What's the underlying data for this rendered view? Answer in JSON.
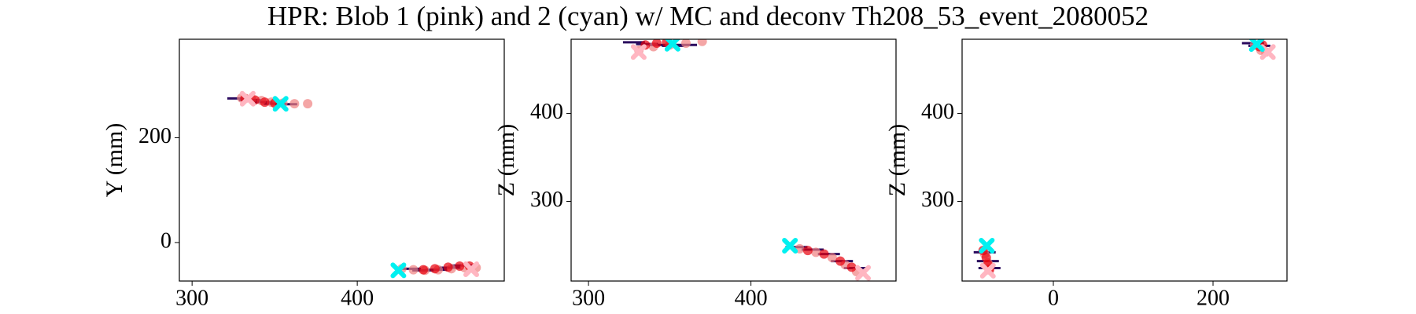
{
  "title": "HPR: Blob 1 (pink) and 2 (cyan) w/ MC and deconv Th208_53_event_2080052",
  "chart_data": [
    {
      "type": "scatter",
      "ylabel": "Y (mm)",
      "xlim": [
        292.3,
        489
      ],
      "ylim": [
        -73.5,
        388
      ],
      "xticks": [
        300,
        400
      ],
      "yticks": [
        0,
        200
      ],
      "series": [
        {
          "color": "#2a0a5e",
          "marker": "hline",
          "x": [
            328,
            335,
            342,
            350,
            357,
            432,
            440,
            448,
            456,
            463
          ],
          "values": [
            275,
            272,
            268,
            265,
            264,
            -50,
            -53,
            -52,
            -48,
            -44
          ]
        },
        {
          "color": "#f08080",
          "marker": "circle",
          "x": [
            330,
            336,
            342,
            348,
            355,
            362,
            370,
            427,
            434,
            441,
            449,
            457,
            465,
            472
          ],
          "values": [
            276,
            274,
            271,
            268,
            266,
            265,
            265,
            -50,
            -52,
            -53,
            -52,
            -50,
            -48,
            -48
          ]
        },
        {
          "color": "#e8000b",
          "marker": "circle",
          "x": [
            332,
            338,
            344,
            350,
            440,
            447,
            455,
            462,
            468
          ],
          "values": [
            275,
            272,
            268,
            266,
            -52,
            -50,
            -47,
            -45,
            -45
          ]
        },
        {
          "color": "#ffb6c1",
          "marker": "x",
          "x": [
            333.7,
            469
          ],
          "values": [
            274.5,
            -51
          ]
        },
        {
          "color": "#00f0f0",
          "marker": "x",
          "x": [
            353.6,
            424.9
          ],
          "values": [
            264.7,
            -53
          ]
        }
      ]
    },
    {
      "type": "scatter",
      "ylabel": "Z (mm)",
      "xlim": [
        289.3,
        489.3
      ],
      "ylim": [
        209.3,
        484.5
      ],
      "xticks": [
        300,
        400
      ],
      "yticks": [
        300,
        400
      ],
      "series": [
        {
          "color": "#2a0a5e",
          "marker": "hline",
          "x": [
            328,
            336,
            344,
            352,
            360,
            428,
            438,
            448,
            456,
            464
          ],
          "values": [
            481,
            479,
            478,
            477,
            478,
            248,
            245,
            240,
            232,
            224
          ]
        },
        {
          "color": "#f08080",
          "marker": "circle",
          "x": [
            331,
            340,
            350,
            360,
            370,
            430,
            440,
            450,
            458,
            465
          ],
          "values": [
            472,
            476,
            478,
            480,
            482,
            246,
            242,
            236,
            228,
            220
          ]
        },
        {
          "color": "#e8000b",
          "marker": "circle",
          "x": [
            335,
            342,
            348,
            435,
            445,
            455,
            462
          ],
          "values": [
            478,
            480,
            481,
            244,
            240,
            232,
            225
          ]
        },
        {
          "color": "#ffb6c1",
          "marker": "x",
          "x": [
            330.9,
            469
          ],
          "values": [
            470,
            218.6
          ]
        },
        {
          "color": "#00f0f0",
          "marker": "x",
          "x": [
            351.7,
            424
          ],
          "values": [
            479.4,
            249.5
          ]
        }
      ]
    },
    {
      "type": "scatter",
      "ylabel": "Z (mm)",
      "xlim": [
        -114.3,
        292.6
      ],
      "ylim": [
        209.3,
        484.5
      ],
      "xticks": [
        0,
        200
      ],
      "yticks": [
        300,
        400
      ],
      "series": [
        {
          "color": "#2a0a5e",
          "marker": "hline",
          "x": [
            250,
            258,
            -86,
            -82,
            -80
          ],
          "values": [
            480,
            477,
            242,
            232,
            224
          ]
        },
        {
          "color": "#f08080",
          "marker": "circle",
          "x": [
            252,
            260,
            266,
            -86,
            -82,
            -80
          ],
          "values": [
            478,
            472,
            470,
            240,
            230,
            224
          ]
        },
        {
          "color": "#e8000b",
          "marker": "circle",
          "x": [
            258,
            262,
            -88,
            -84,
            -82,
            -80
          ],
          "values": [
            476,
            478,
            244,
            236,
            228,
            222
          ]
        },
        {
          "color": "#ffb6c1",
          "marker": "x",
          "x": [
            268.6,
            -82
          ],
          "values": [
            470,
            221
          ]
        },
        {
          "color": "#00f0f0",
          "marker": "x",
          "x": [
            254.9,
            -83.4
          ],
          "values": [
            479,
            249.5
          ]
        }
      ]
    }
  ]
}
